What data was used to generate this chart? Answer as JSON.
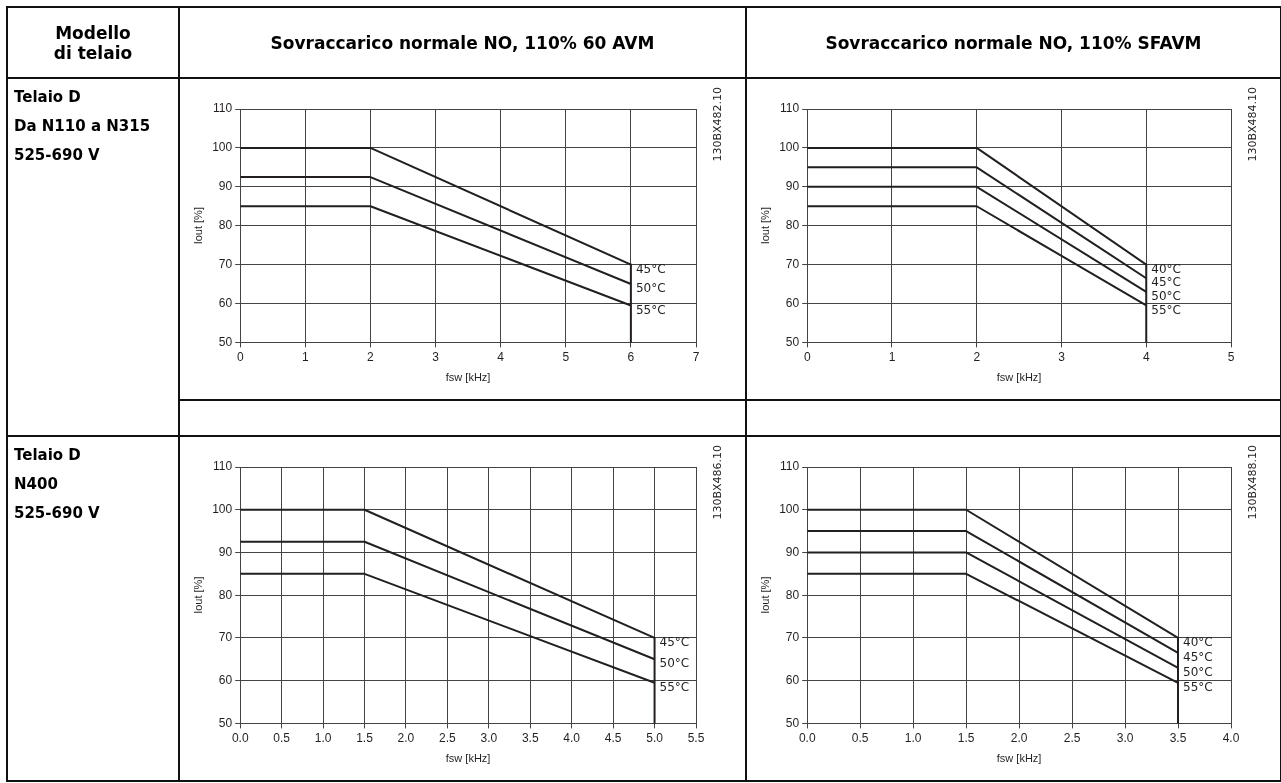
{
  "chart_data": [
    {
      "type": "other",
      "title": "Modello di telaio"
    },
    {
      "type": "other",
      "title": "Sovraccarico normale NO, 110% 60 AVM"
    },
    {
      "type": "other",
      "title": "Sovraccarico normale NO, 110% SFAVM"
    },
    {
      "type": "other",
      "annotations": [
        "Telaio D",
        "Da N110 a N315",
        "525-690 V"
      ]
    },
    {
      "type": "line",
      "xlabel": "fsw [kHz]",
      "ylabel": "Iout [%]",
      "xlim": [
        0,
        7
      ],
      "xticks": [
        0,
        1,
        2,
        3,
        4,
        5,
        6,
        7
      ],
      "ylim": [
        50,
        110
      ],
      "yticks": [
        50,
        60,
        70,
        80,
        90,
        100,
        110
      ],
      "grid": true,
      "annotations": [
        "130BX482.10"
      ],
      "series": [
        {
          "name": "45°C",
          "color": "#231f20",
          "x": [
            0,
            2,
            6
          ],
          "values": [
            100,
            100,
            70
          ]
        },
        {
          "name": "50°C",
          "color": "#231f20",
          "x": [
            0,
            2,
            6
          ],
          "values": [
            92.5,
            92.5,
            65
          ]
        },
        {
          "name": "55°C",
          "color": "#231f20",
          "x": [
            0,
            2,
            6
          ],
          "values": [
            85,
            85,
            59.5
          ]
        },
        {
          "color": "#231f20",
          "x": [
            6,
            6
          ],
          "values": [
            70,
            50
          ]
        }
      ]
    },
    {
      "type": "line",
      "xlabel": "fsw [kHz]",
      "ylabel": "Iout [%]",
      "xlim": [
        0,
        5
      ],
      "xticks": [
        0,
        1,
        2,
        3,
        4,
        5
      ],
      "ylim": [
        50,
        110
      ],
      "yticks": [
        50,
        60,
        70,
        80,
        90,
        100,
        110
      ],
      "grid": true,
      "annotations": [
        "130BX484.10"
      ],
      "series": [
        {
          "name": "40°C",
          "color": "#231f20",
          "x": [
            0,
            2,
            4
          ],
          "values": [
            100,
            100,
            70
          ]
        },
        {
          "name": "45°C",
          "color": "#231f20",
          "x": [
            0,
            2,
            4
          ],
          "values": [
            95,
            95,
            66.5
          ]
        },
        {
          "name": "50°C",
          "color": "#231f20",
          "x": [
            0,
            2,
            4
          ],
          "values": [
            90,
            90,
            63
          ]
        },
        {
          "name": "55°C",
          "color": "#231f20",
          "x": [
            0,
            2,
            4
          ],
          "values": [
            85,
            85,
            59.5
          ]
        },
        {
          "color": "#231f20",
          "x": [
            4,
            4
          ],
          "values": [
            70,
            50
          ]
        }
      ]
    },
    {
      "type": "other",
      "annotations": [
        "Telaio D",
        "N400",
        "525-690 V"
      ]
    },
    {
      "type": "line",
      "xlabel": "fsw [kHz]",
      "ylabel": "Iout [%]",
      "xlim": [
        0,
        5.5
      ],
      "xticks": [
        {
          "value": 0,
          "label": "0.0"
        },
        {
          "value": 0.5,
          "label": "0.5"
        },
        {
          "value": 1,
          "label": "1.0"
        },
        {
          "value": 1.5,
          "label": "1.5"
        },
        {
          "value": 2,
          "label": "2.0"
        },
        {
          "value": 2.5,
          "label": "2.5"
        },
        {
          "value": 3,
          "label": "3.0"
        },
        {
          "value": 3.5,
          "label": "3.5"
        },
        {
          "value": 4,
          "label": "4.0"
        },
        {
          "value": 4.5,
          "label": "4.5"
        },
        {
          "value": 5,
          "label": "5.0"
        },
        {
          "value": 5.5,
          "label": "5.5"
        }
      ],
      "ylim": [
        50,
        110
      ],
      "yticks": [
        50,
        60,
        70,
        80,
        90,
        100,
        110
      ],
      "grid": true,
      "annotations": [
        "130BX486.10"
      ],
      "series": [
        {
          "name": "45°C",
          "color": "#231f20",
          "x": [
            0,
            1.5,
            5
          ],
          "values": [
            100,
            100,
            70
          ]
        },
        {
          "name": "50°C",
          "color": "#231f20",
          "x": [
            0,
            1.5,
            5
          ],
          "values": [
            92.5,
            92.5,
            65
          ]
        },
        {
          "name": "55°C",
          "color": "#231f20",
          "x": [
            0,
            1.5,
            5
          ],
          "values": [
            85,
            85,
            59.5
          ]
        },
        {
          "color": "#231f20",
          "x": [
            5,
            5
          ],
          "values": [
            70,
            50
          ]
        }
      ]
    },
    {
      "type": "line",
      "xlabel": "fsw [kHz]",
      "ylabel": "Iout [%]",
      "xlim": [
        0,
        4
      ],
      "xticks": [
        {
          "value": 0,
          "label": "0.0"
        },
        {
          "value": 0.5,
          "label": "0.5"
        },
        {
          "value": 1,
          "label": "1.0"
        },
        {
          "value": 1.5,
          "label": "1.5"
        },
        {
          "value": 2,
          "label": "2.0"
        },
        {
          "value": 2.5,
          "label": "2.5"
        },
        {
          "value": 3,
          "label": "3.0"
        },
        {
          "value": 3.5,
          "label": "3.5"
        },
        {
          "value": 4,
          "label": "4.0"
        }
      ],
      "ylim": [
        50,
        110
      ],
      "yticks": [
        50,
        60,
        70,
        80,
        90,
        100,
        110
      ],
      "grid": true,
      "annotations": [
        "130BX488.10"
      ],
      "series": [
        {
          "name": "40°C",
          "color": "#231f20",
          "x": [
            0,
            1.5,
            3.5
          ],
          "values": [
            100,
            100,
            70
          ]
        },
        {
          "name": "45°C",
          "color": "#231f20",
          "x": [
            0,
            1.5,
            3.5
          ],
          "values": [
            95,
            95,
            66.5
          ]
        },
        {
          "name": "50°C",
          "color": "#231f20",
          "x": [
            0,
            1.5,
            3.5
          ],
          "values": [
            90,
            90,
            63
          ]
        },
        {
          "name": "55°C",
          "color": "#231f20",
          "x": [
            0,
            1.5,
            3.5
          ],
          "values": [
            85,
            85,
            59.5
          ]
        },
        {
          "color": "#231f20",
          "x": [
            3.5,
            3.5
          ],
          "values": [
            70,
            50
          ]
        }
      ]
    }
  ]
}
